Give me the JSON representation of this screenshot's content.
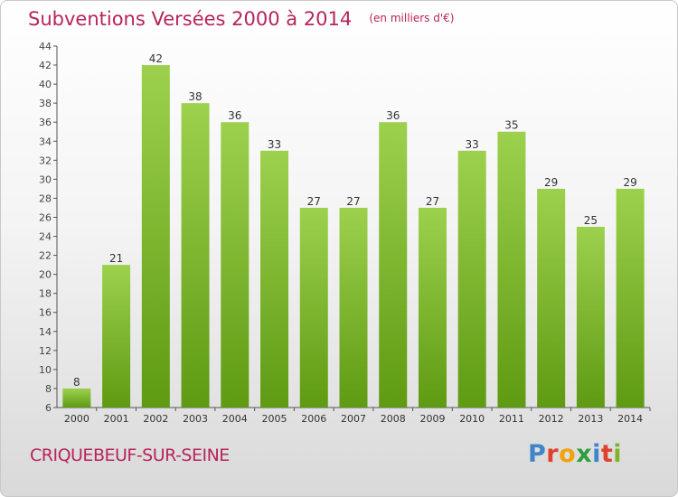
{
  "header": {
    "title": "Subventions Versées 2000 à 2014",
    "unit": "(en milliers d'€)"
  },
  "footer": {
    "commune": "CRIQUEBEUF-SUR-SEINE",
    "logo": "Proxiti"
  },
  "colors": {
    "title": "#b7245c",
    "bar_top": "#9dd14d",
    "bar_bottom": "#5e9a12"
  },
  "chart_data": {
    "type": "bar",
    "title": "Subventions Versées 2000 à 2014",
    "subtitle": "(en milliers d'€)",
    "categories": [
      "2000",
      "2001",
      "2002",
      "2003",
      "2004",
      "2005",
      "2006",
      "2007",
      "2008",
      "2009",
      "2010",
      "2011",
      "2012",
      "2013",
      "2014"
    ],
    "values": [
      8,
      21,
      42,
      38,
      36,
      33,
      27,
      27,
      36,
      27,
      33,
      35,
      29,
      25,
      29
    ],
    "ylim": [
      6,
      44
    ],
    "yticks": [
      6,
      8,
      10,
      12,
      14,
      16,
      18,
      20,
      22,
      24,
      26,
      28,
      30,
      32,
      34,
      36,
      38,
      40,
      42,
      44
    ],
    "grid": false,
    "data_labels": true
  }
}
